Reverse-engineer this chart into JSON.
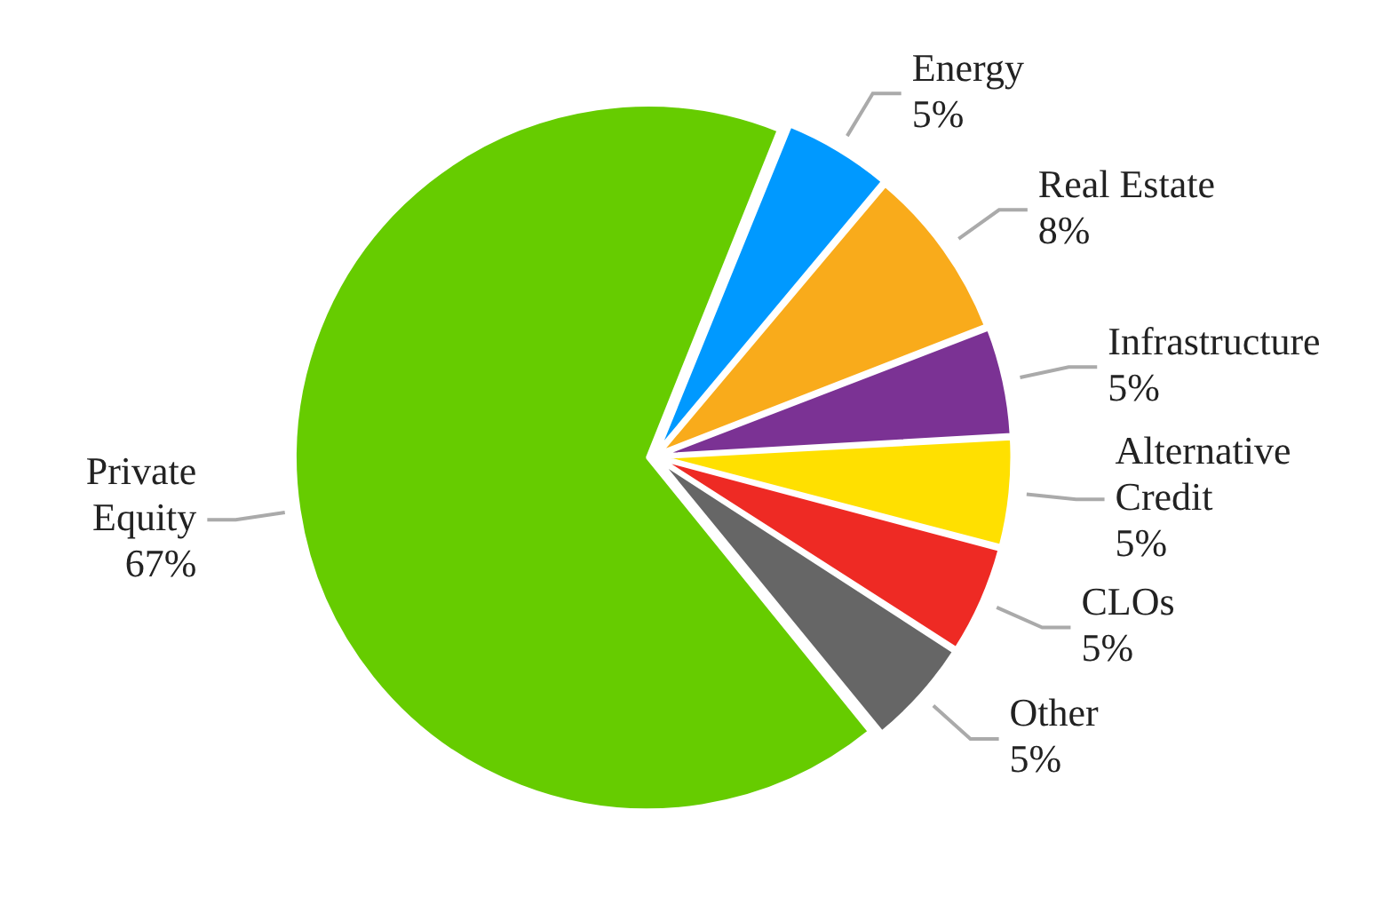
{
  "chart_data": {
    "type": "pie",
    "categories": [
      "Energy",
      "Real Estate",
      "Infrastructure",
      "Alternative Credit",
      "CLOs",
      "Other",
      "Private Equity"
    ],
    "values": [
      5,
      8,
      5,
      5,
      5,
      5,
      67
    ],
    "colors": [
      "#0099ff",
      "#f9ab1b",
      "#7b3294",
      "#ffe000",
      "#ee2a24",
      "#666666",
      "#66cc00"
    ],
    "value_labels": [
      "5%",
      "8%",
      "5%",
      "5%",
      "5%",
      "5%",
      "67%"
    ],
    "legend": false
  }
}
